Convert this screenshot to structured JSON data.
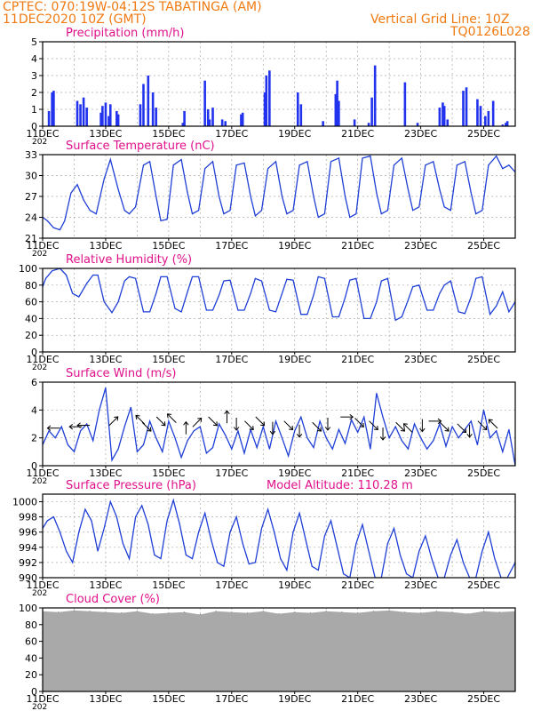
{
  "header": {
    "line1": "CPTEC:   070:19W-04:12S   TABATINGA (AM)",
    "line2": "11DEC2020 10Z (GMT)",
    "grid_note": "Vertical Grid Line: 10Z",
    "code": "TQ0126L028"
  },
  "x_ticks": [
    "11DEC",
    "13DEC",
    "15DEC",
    "17DEC",
    "19DEC",
    "21DEC",
    "23DEC",
    "25DEC"
  ],
  "x_ticks_top": [
    "11DEC",
    "13DEC",
    "15DEC",
    "17DEC",
    "19DEC",
    "21DEC",
    "23DEC",
    "25DEC"
  ],
  "cut_label": "202",
  "colors": {
    "line": "#1f3fd6",
    "bar": "#2233ee",
    "cloud": "#a9a9a9",
    "title": "#e0108a",
    "header": "#f07a12"
  },
  "chart_data": [
    {
      "type": "bar",
      "title": "Precipitation  (mm/h)",
      "ylim": [
        0,
        5
      ],
      "yticks": [
        "0",
        "1",
        "2",
        "3",
        "4",
        "5"
      ],
      "x_start_day": 0,
      "x_end_day": 15,
      "days": [
        0.2,
        0.3,
        0.35,
        1.1,
        1.2,
        1.3,
        1.4,
        1.85,
        1.9,
        2.0,
        2.1,
        2.15,
        2.35,
        2.4,
        3.1,
        3.2,
        3.35,
        3.5,
        3.6,
        4.45,
        4.5,
        5.15,
        5.25,
        5.3,
        5.4,
        5.7,
        5.8,
        6.3,
        6.35,
        7.05,
        7.1,
        7.2,
        8.1,
        8.2,
        8.9,
        9.3,
        9.35,
        9.4,
        9.9,
        10.35,
        10.45,
        10.55,
        11.5,
        11.9,
        12.6,
        12.7,
        12.75,
        12.85,
        13.35,
        13.45,
        13.8,
        13.9,
        14.05,
        14.15,
        14.3,
        14.6,
        14.7,
        14.75
      ],
      "values": [
        0.9,
        2.0,
        2.1,
        1.5,
        1.3,
        1.7,
        1.1,
        0.8,
        1.2,
        1.4,
        0.6,
        1.3,
        0.9,
        0.7,
        1.3,
        2.5,
        3.0,
        2.0,
        1.1,
        0.2,
        0.9,
        2.7,
        1.0,
        0.4,
        1.1,
        0.4,
        0.3,
        0.7,
        0.8,
        2.0,
        3.0,
        3.3,
        2.0,
        1.3,
        0.3,
        1.9,
        2.7,
        1.5,
        0.4,
        0.2,
        1.7,
        3.6,
        2.6,
        0.2,
        1.1,
        1.4,
        1.2,
        0.4,
        2.1,
        2.3,
        1.6,
        1.2,
        0.6,
        0.9,
        1.5,
        0.1,
        0.2,
        0.3
      ]
    },
    {
      "type": "line",
      "title": "Surface Temperature  (nC)",
      "ylim": [
        21,
        33
      ],
      "yticks": [
        "21",
        "24",
        "27",
        "30",
        "33"
      ],
      "x_start_day": 0,
      "x_end_day": 15,
      "x": [
        0,
        0.15,
        0.35,
        0.55,
        0.7,
        0.9,
        1.1,
        1.3,
        1.5,
        1.7,
        1.95,
        2.15,
        2.4,
        2.6,
        2.75,
        2.95,
        3.2,
        3.4,
        3.6,
        3.75,
        3.95,
        4.15,
        4.4,
        4.6,
        4.75,
        4.95,
        5.15,
        5.4,
        5.6,
        5.75,
        5.95,
        6.15,
        6.4,
        6.6,
        6.75,
        6.95,
        7.15,
        7.4,
        7.6,
        7.75,
        7.95,
        8.15,
        8.4,
        8.6,
        8.75,
        8.95,
        9.15,
        9.4,
        9.6,
        9.75,
        9.95,
        10.15,
        10.4,
        10.6,
        10.75,
        10.95,
        11.15,
        11.4,
        11.6,
        11.75,
        11.95,
        12.15,
        12.4,
        12.6,
        12.75,
        12.95,
        13.15,
        13.4,
        13.6,
        13.75,
        13.95,
        14.15,
        14.4,
        14.6,
        14.8,
        15.0
      ],
      "y": [
        24.0,
        23.5,
        22.5,
        22.2,
        23.5,
        27.5,
        28.7,
        26.5,
        25.0,
        24.5,
        29.5,
        32.3,
        28.0,
        25.0,
        24.5,
        25.5,
        31.5,
        32.0,
        27.0,
        23.5,
        23.7,
        31.5,
        32.3,
        27.5,
        24.5,
        25.0,
        31.0,
        32.0,
        27.0,
        24.5,
        25.0,
        31.5,
        31.8,
        27.0,
        24.2,
        25.0,
        31.0,
        32.0,
        27.0,
        24.5,
        25.0,
        31.5,
        32.0,
        27.0,
        24.0,
        24.5,
        32.0,
        32.5,
        27.0,
        24.0,
        24.5,
        32.5,
        32.8,
        27.5,
        24.5,
        25.0,
        31.5,
        32.5,
        28.0,
        25.0,
        25.5,
        31.5,
        32.0,
        28.0,
        25.5,
        25.0,
        31.5,
        32.0,
        27.5,
        24.5,
        25.0,
        31.5,
        32.8,
        31.0,
        31.5,
        30.5
      ]
    },
    {
      "type": "line",
      "title": "Relative Humidity  (%)",
      "ylim": [
        0,
        100
      ],
      "yticks": [
        "0",
        "20",
        "40",
        "60",
        "80",
        "100"
      ],
      "x_start_day": 0,
      "x_end_day": 15,
      "x": [
        0,
        0.1,
        0.3,
        0.55,
        0.75,
        0.95,
        1.15,
        1.4,
        1.6,
        1.75,
        1.95,
        2.2,
        2.4,
        2.6,
        2.75,
        2.95,
        3.2,
        3.4,
        3.6,
        3.75,
        3.95,
        4.2,
        4.4,
        4.6,
        4.75,
        4.95,
        5.2,
        5.4,
        5.6,
        5.75,
        5.95,
        6.2,
        6.4,
        6.6,
        6.75,
        6.95,
        7.2,
        7.4,
        7.6,
        7.75,
        7.95,
        8.2,
        8.4,
        8.6,
        8.75,
        8.95,
        9.2,
        9.4,
        9.6,
        9.75,
        9.95,
        10.2,
        10.4,
        10.6,
        10.75,
        10.95,
        11.2,
        11.4,
        11.6,
        11.75,
        11.95,
        12.2,
        12.4,
        12.6,
        12.75,
        12.95,
        13.2,
        13.4,
        13.6,
        13.75,
        13.95,
        14.2,
        14.4,
        14.6,
        14.8,
        15.0
      ],
      "y": [
        78,
        88,
        97,
        100,
        92,
        70,
        66,
        82,
        92,
        92,
        60,
        47,
        60,
        85,
        90,
        88,
        48,
        48,
        70,
        90,
        90,
        52,
        48,
        72,
        90,
        90,
        50,
        50,
        68,
        85,
        86,
        50,
        50,
        70,
        88,
        85,
        50,
        48,
        70,
        87,
        86,
        45,
        45,
        68,
        90,
        88,
        42,
        42,
        65,
        86,
        88,
        40,
        40,
        60,
        85,
        88,
        38,
        42,
        62,
        78,
        80,
        50,
        50,
        70,
        80,
        85,
        48,
        46,
        66,
        88,
        90,
        45,
        55,
        72,
        48,
        60
      ]
    },
    {
      "type": "line",
      "title": "Surface Wind  (m/s)",
      "ylim": [
        0,
        6
      ],
      "yticks": [
        "0",
        "2",
        "4",
        "6"
      ],
      "x_start_day": 0,
      "x_end_day": 15,
      "x": [
        0,
        0.2,
        0.4,
        0.6,
        0.8,
        1.0,
        1.2,
        1.4,
        1.6,
        1.8,
        2.0,
        2.2,
        2.4,
        2.6,
        2.8,
        3.0,
        3.2,
        3.4,
        3.6,
        3.8,
        4.0,
        4.2,
        4.4,
        4.6,
        4.8,
        5.0,
        5.2,
        5.4,
        5.6,
        5.8,
        6.0,
        6.2,
        6.4,
        6.6,
        6.8,
        7.0,
        7.2,
        7.4,
        7.6,
        7.8,
        8.0,
        8.2,
        8.4,
        8.6,
        8.8,
        9.0,
        9.2,
        9.4,
        9.6,
        9.8,
        10.0,
        10.2,
        10.4,
        10.6,
        10.8,
        11.0,
        11.2,
        11.4,
        11.6,
        11.8,
        12.0,
        12.2,
        12.4,
        12.6,
        12.8,
        13.0,
        13.2,
        13.4,
        13.6,
        13.8,
        14.0,
        14.2,
        14.4,
        14.6,
        14.8,
        15.0
      ],
      "y": [
        1.5,
        2.5,
        2.0,
        2.8,
        1.5,
        1.0,
        2.5,
        3.0,
        1.8,
        4.0,
        5.6,
        0.4,
        1.2,
        2.8,
        4.2,
        1.0,
        1.5,
        3.2,
        2.0,
        1.0,
        3.2,
        2.0,
        0.6,
        1.8,
        2.5,
        2.8,
        0.9,
        1.3,
        3.0,
        2.2,
        1.2,
        2.5,
        0.9,
        2.6,
        1.3,
        2.8,
        1.2,
        3.2,
        2.0,
        0.7,
        2.5,
        3.5,
        2.0,
        1.3,
        3.2,
        2.0,
        1.2,
        2.6,
        1.6,
        3.3,
        2.4,
        3.5,
        1.2,
        5.2,
        3.5,
        2.0,
        2.8,
        1.8,
        1.2,
        3.0,
        2.0,
        1.2,
        1.8,
        3.0,
        1.4,
        2.8,
        2.0,
        2.6,
        3.2,
        1.5,
        4.0,
        2.0,
        2.5,
        1.0,
        2.6,
        0.0
      ],
      "arrows": [
        {
          "x": 0.35,
          "y": 2.7,
          "dir": "W"
        },
        {
          "x": 1.05,
          "y": 2.8,
          "dir": "W"
        },
        {
          "x": 1.3,
          "y": 2.9,
          "dir": "W"
        },
        {
          "x": 2.25,
          "y": 3.2,
          "dir": "NE"
        },
        {
          "x": 3.1,
          "y": 3.3,
          "dir": "NW"
        },
        {
          "x": 3.3,
          "y": 2.8,
          "dir": "SE"
        },
        {
          "x": 3.75,
          "y": 3.2,
          "dir": "SE"
        },
        {
          "x": 4.1,
          "y": 3.4,
          "dir": "NW"
        },
        {
          "x": 4.55,
          "y": 2.7,
          "dir": "N"
        },
        {
          "x": 4.9,
          "y": 3.1,
          "dir": "NE"
        },
        {
          "x": 5.4,
          "y": 3.2,
          "dir": "SE"
        },
        {
          "x": 5.85,
          "y": 3.5,
          "dir": "N"
        },
        {
          "x": 6.15,
          "y": 3.0,
          "dir": "S"
        },
        {
          "x": 6.55,
          "y": 2.9,
          "dir": "SE"
        },
        {
          "x": 6.9,
          "y": 3.2,
          "dir": "SE"
        },
        {
          "x": 7.3,
          "y": 2.7,
          "dir": "S"
        },
        {
          "x": 7.8,
          "y": 2.9,
          "dir": "SE"
        },
        {
          "x": 8.15,
          "y": 2.5,
          "dir": "S"
        },
        {
          "x": 8.7,
          "y": 2.8,
          "dir": "SE"
        },
        {
          "x": 9.05,
          "y": 3.0,
          "dir": "S"
        },
        {
          "x": 9.65,
          "y": 3.5,
          "dir": "E"
        },
        {
          "x": 10.05,
          "y": 3.1,
          "dir": "SE"
        },
        {
          "x": 10.5,
          "y": 2.9,
          "dir": "SE"
        },
        {
          "x": 10.8,
          "y": 2.3,
          "dir": "S"
        },
        {
          "x": 11.35,
          "y": 2.8,
          "dir": "SE"
        },
        {
          "x": 11.6,
          "y": 2.7,
          "dir": "NW"
        },
        {
          "x": 12.05,
          "y": 2.9,
          "dir": "S"
        },
        {
          "x": 12.45,
          "y": 3.2,
          "dir": "E"
        },
        {
          "x": 12.75,
          "y": 2.8,
          "dir": "SE"
        },
        {
          "x": 13.3,
          "y": 2.7,
          "dir": "SE"
        },
        {
          "x": 13.55,
          "y": 2.5,
          "dir": "S"
        },
        {
          "x": 13.95,
          "y": 2.9,
          "dir": "SE"
        },
        {
          "x": 14.3,
          "y": 3.0,
          "dir": "NW"
        }
      ]
    },
    {
      "type": "line",
      "title": "Surface Pressure  (hPa)",
      "annotation": "Model Altitude:  110.28  m",
      "ylim": [
        990,
        1001
      ],
      "yticks": [
        "990",
        "992",
        "994",
        "996",
        "998",
        "1000"
      ],
      "x_start_day": 0,
      "x_end_day": 15,
      "x": [
        0,
        0.15,
        0.35,
        0.55,
        0.75,
        0.95,
        1.15,
        1.35,
        1.55,
        1.75,
        1.95,
        2.15,
        2.35,
        2.55,
        2.75,
        2.95,
        3.15,
        3.35,
        3.55,
        3.75,
        3.95,
        4.15,
        4.35,
        4.55,
        4.75,
        4.95,
        5.15,
        5.35,
        5.55,
        5.75,
        5.95,
        6.15,
        6.35,
        6.55,
        6.75,
        6.95,
        7.15,
        7.35,
        7.55,
        7.75,
        7.95,
        8.15,
        8.35,
        8.55,
        8.75,
        8.95,
        9.15,
        9.35,
        9.55,
        9.75,
        9.95,
        10.15,
        10.35,
        10.55,
        10.75,
        10.95,
        11.15,
        11.35,
        11.55,
        11.75,
        11.95,
        12.15,
        12.35,
        12.55,
        12.75,
        12.95,
        13.15,
        13.35,
        13.55,
        13.75,
        13.95,
        14.15,
        14.35,
        14.55,
        14.75,
        15.0
      ],
      "y": [
        996.5,
        997.5,
        998.0,
        996.0,
        993.5,
        992.0,
        996.0,
        999.0,
        997.5,
        993.5,
        996.5,
        1000.0,
        998.0,
        994.5,
        992.5,
        998.0,
        999.5,
        997.0,
        993.0,
        992.5,
        997.5,
        1000.2,
        997.0,
        993.0,
        992.5,
        996.0,
        998.5,
        995.0,
        992.0,
        991.5,
        996.0,
        998.0,
        994.5,
        991.8,
        992.0,
        996.5,
        999.0,
        996.0,
        992.5,
        991.0,
        996.0,
        998.5,
        995.0,
        991.5,
        991.0,
        995.5,
        997.5,
        994.0,
        990.5,
        990.0,
        994.5,
        997.0,
        993.5,
        990.0,
        990.0,
        994.5,
        996.5,
        993.0,
        990.5,
        990.0,
        993.5,
        995.5,
        992.5,
        990.0,
        990.0,
        993.0,
        995.0,
        992.0,
        990.0,
        990.0,
        993.5,
        996.0,
        992.5,
        990.0,
        990.0,
        992.0
      ]
    },
    {
      "type": "area",
      "title": "Cloud Cover  (%)",
      "ylim": [
        0,
        100
      ],
      "yticks": [
        "0",
        "20",
        "40",
        "60",
        "80",
        "100"
      ],
      "x_start_day": 0,
      "x_end_day": 15,
      "x": [
        0,
        0.5,
        1.0,
        1.5,
        2.0,
        2.5,
        3.0,
        3.5,
        4.0,
        4.5,
        5.0,
        5.5,
        6.0,
        6.5,
        7.0,
        7.5,
        8.0,
        8.5,
        9.0,
        9.5,
        10.0,
        10.5,
        11.0,
        11.5,
        12.0,
        12.5,
        13.0,
        13.5,
        14.0,
        14.5,
        15.0
      ],
      "y": [
        96,
        95,
        97,
        96,
        95,
        94,
        96,
        93,
        94,
        95,
        92,
        96,
        95,
        94,
        96,
        93,
        95,
        94,
        96,
        95,
        94,
        96,
        97,
        95,
        94,
        96,
        95,
        93,
        96,
        95,
        96
      ]
    }
  ]
}
